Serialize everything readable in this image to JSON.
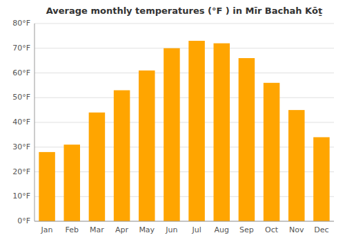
{
  "chart_data": {
    "type": "bar",
    "title": "Average monthly temperatures (°F ) in Mīr Bachah Kōṯ",
    "categories": [
      "Jan",
      "Feb",
      "Mar",
      "Apr",
      "May",
      "Jun",
      "Jul",
      "Aug",
      "Sep",
      "Oct",
      "Nov",
      "Dec"
    ],
    "values": [
      28,
      31,
      44,
      53,
      61,
      70,
      73,
      72,
      66,
      56,
      45,
      34
    ],
    "color": "#FFA500",
    "ylim": [
      0,
      80
    ],
    "yticks": [
      {
        "value": 0,
        "label": "0°F"
      },
      {
        "value": 10,
        "label": "10°F"
      },
      {
        "value": 20,
        "label": "20°F"
      },
      {
        "value": 30,
        "label": "30°F"
      },
      {
        "value": 40,
        "label": "40°F"
      },
      {
        "value": 50,
        "label": "50°F"
      },
      {
        "value": 60,
        "label": "60°F"
      },
      {
        "value": 70,
        "label": "70°F"
      },
      {
        "value": 80,
        "label": "80°F"
      }
    ],
    "grid": true
  }
}
